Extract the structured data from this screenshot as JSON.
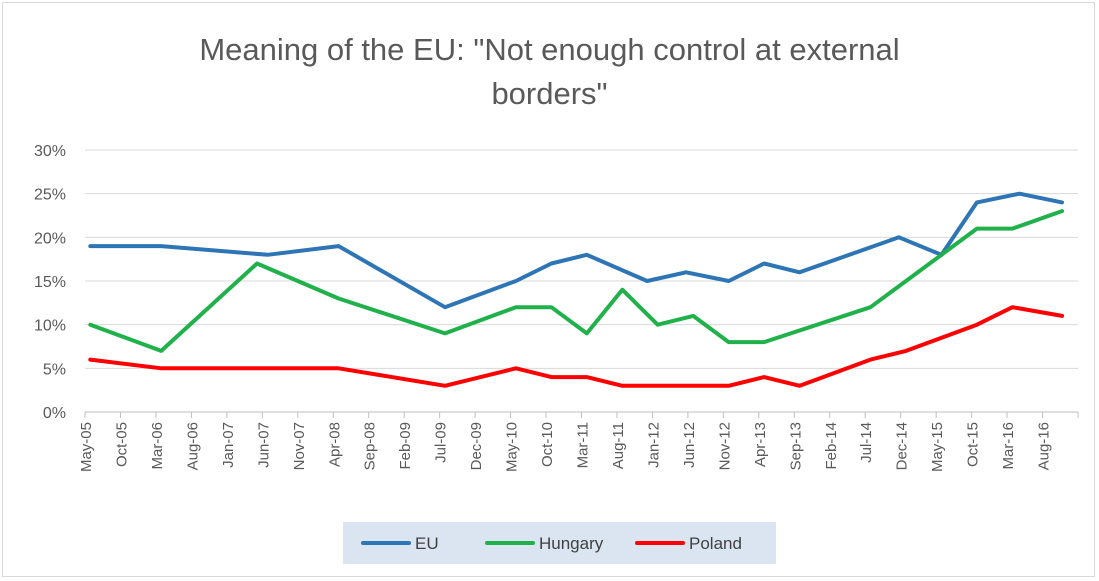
{
  "chart_data": {
    "type": "line",
    "title": "Meaning of the EU: \"Not enough control at external borders\"",
    "ylim": [
      0,
      30
    ],
    "yticks": [
      "0%",
      "5%",
      "10%",
      "15%",
      "20%",
      "25%",
      "30%"
    ],
    "grid": "horizontal",
    "legend_position": "bottom",
    "x": [
      "May-05",
      "Oct-05",
      "Mar-06",
      "Aug-06",
      "Jan-07",
      "Jun-07",
      "Nov-07",
      "Apr-08",
      "Sep-08",
      "Feb-09",
      "Jul-09",
      "Dec-09",
      "May-10",
      "Oct-10",
      "Mar-11",
      "Aug-11",
      "Jan-12",
      "Jun-12",
      "Nov-12",
      "Apr-13",
      "Sep-13",
      "Feb-14",
      "Jul-14",
      "Dec-14",
      "May-15",
      "Oct-15",
      "Mar-16",
      "Aug-16"
    ],
    "series": [
      {
        "name": "EU",
        "color": "#2e75b6",
        "points": [
          [
            0,
            19
          ],
          [
            1,
            19
          ],
          [
            2,
            19
          ],
          [
            5,
            18
          ],
          [
            7,
            19
          ],
          [
            10,
            12
          ],
          [
            12,
            15
          ],
          [
            13,
            17
          ],
          [
            14,
            18
          ],
          [
            15.7,
            15
          ],
          [
            16.8,
            16
          ],
          [
            18,
            15
          ],
          [
            19,
            17
          ],
          [
            20,
            16
          ],
          [
            22.8,
            20
          ],
          [
            24,
            18
          ],
          [
            25,
            24
          ],
          [
            26.2,
            25
          ],
          [
            27.4,
            24
          ]
        ]
      },
      {
        "name": "Hungary",
        "color": "#21b14b",
        "points": [
          [
            0,
            10
          ],
          [
            2,
            7
          ],
          [
            4.7,
            17
          ],
          [
            7,
            13
          ],
          [
            10,
            9
          ],
          [
            12,
            12
          ],
          [
            13,
            12
          ],
          [
            14,
            9
          ],
          [
            15,
            14
          ],
          [
            16,
            10
          ],
          [
            17,
            11
          ],
          [
            18,
            8
          ],
          [
            19,
            8
          ],
          [
            22,
            12
          ],
          [
            23,
            15
          ],
          [
            25,
            21
          ],
          [
            26,
            21
          ],
          [
            27.4,
            23
          ]
        ]
      },
      {
        "name": "Poland",
        "color": "#ff0000",
        "points": [
          [
            0,
            6
          ],
          [
            2,
            5
          ],
          [
            7,
            5
          ],
          [
            10,
            3
          ],
          [
            12,
            5
          ],
          [
            13,
            4
          ],
          [
            14,
            4
          ],
          [
            15,
            3
          ],
          [
            18,
            3
          ],
          [
            19,
            4
          ],
          [
            20,
            3
          ],
          [
            22,
            6
          ],
          [
            23,
            7
          ],
          [
            25,
            10
          ],
          [
            26,
            12
          ],
          [
            27.4,
            11
          ]
        ]
      }
    ]
  }
}
